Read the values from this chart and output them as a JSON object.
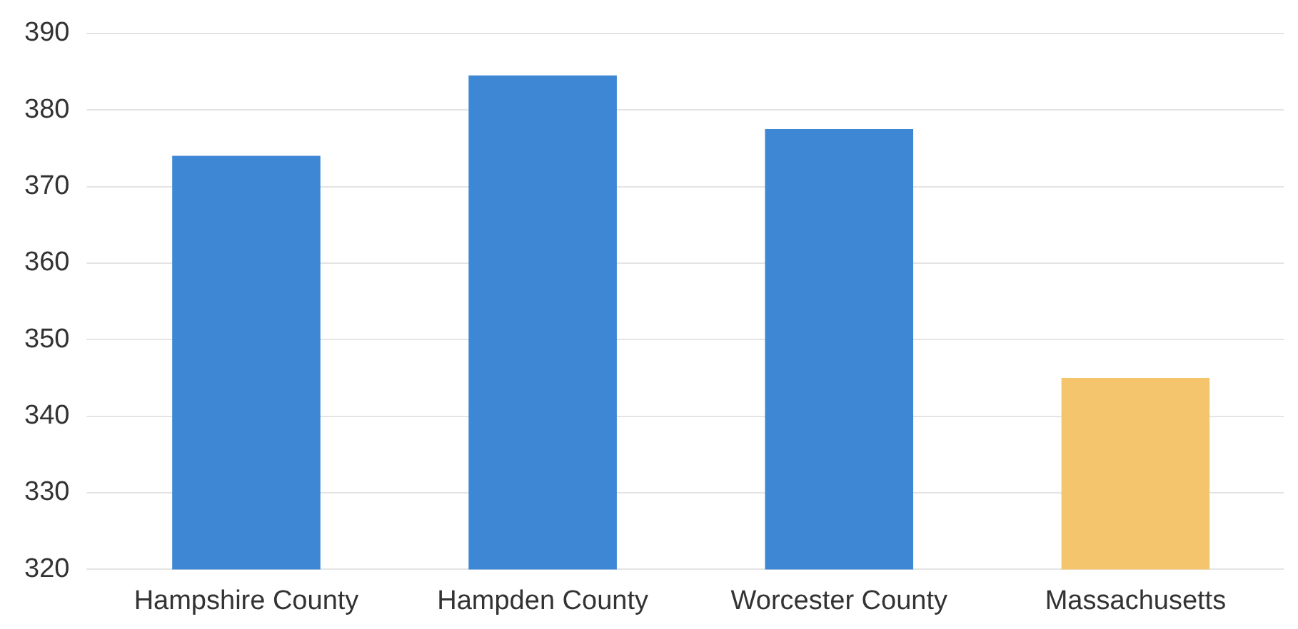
{
  "chart_data": {
    "type": "bar",
    "categories": [
      "Hampshire County",
      "Hampden County",
      "Worcester County",
      "Massachusetts"
    ],
    "values": [
      374,
      384.5,
      377.5,
      345
    ],
    "colors": [
      "#3d87d4",
      "#3d87d4",
      "#3d87d4",
      "#f5c56e"
    ],
    "ylim": [
      320,
      390
    ],
    "yticks": [
      320,
      330,
      340,
      350,
      360,
      370,
      380,
      390
    ],
    "grid": "y"
  }
}
